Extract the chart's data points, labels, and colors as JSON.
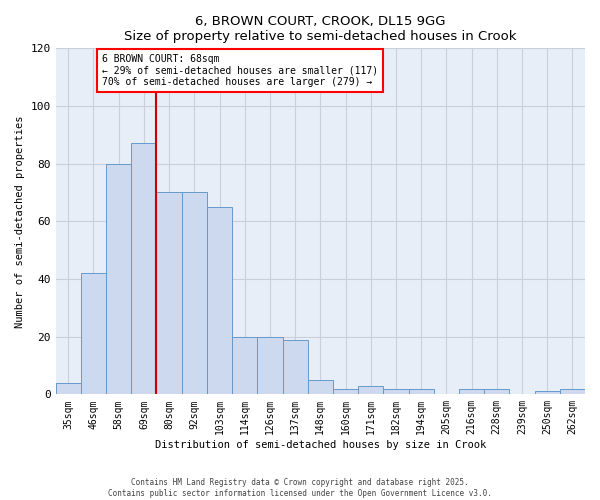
{
  "title": "6, BROWN COURT, CROOK, DL15 9GG",
  "subtitle": "Size of property relative to semi-detached houses in Crook",
  "xlabel": "Distribution of semi-detached houses by size in Crook",
  "ylabel": "Number of semi-detached properties",
  "categories": [
    "35sqm",
    "46sqm",
    "58sqm",
    "69sqm",
    "80sqm",
    "92sqm",
    "103sqm",
    "114sqm",
    "126sqm",
    "137sqm",
    "148sqm",
    "160sqm",
    "171sqm",
    "182sqm",
    "194sqm",
    "205sqm",
    "216sqm",
    "228sqm",
    "239sqm",
    "250sqm",
    "262sqm"
  ],
  "values": [
    4,
    42,
    80,
    87,
    70,
    70,
    65,
    20,
    20,
    19,
    5,
    2,
    3,
    2,
    2,
    0,
    2,
    2,
    0,
    1,
    2
  ],
  "bar_color": "#ccd9ee",
  "bar_edge_color": "#6699cc",
  "ylim": [
    0,
    120
  ],
  "yticks": [
    0,
    20,
    40,
    60,
    80,
    100,
    120
  ],
  "property_line_x": 3.5,
  "annotation_text_line1": "6 BROWN COURT: 68sqm",
  "annotation_text_line2": "← 29% of semi-detached houses are smaller (117)",
  "annotation_text_line3": "70% of semi-detached houses are larger (279) →",
  "red_line_color": "#cc0000",
  "grid_color": "#c8d0de",
  "background_color": "#e8eef8",
  "footer_line1": "Contains HM Land Registry data © Crown copyright and database right 2025.",
  "footer_line2": "Contains public sector information licensed under the Open Government Licence v3.0."
}
